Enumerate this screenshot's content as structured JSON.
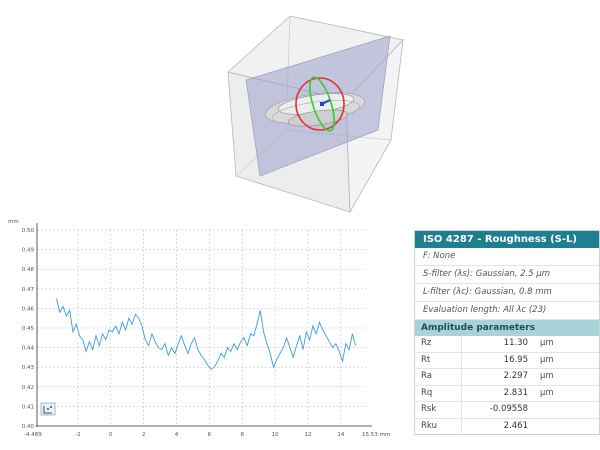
{
  "profile_chart": {
    "chart_data": {
      "type": "line",
      "y_unit": "mm",
      "x_unit": "mm",
      "x_start_label": "-4.489",
      "x_end_label": "15.53 mm",
      "x_ticks": [
        "-2",
        "0",
        "2",
        "4",
        "6",
        "8",
        "10",
        "12",
        "14"
      ],
      "y_ticks": [
        "0.40",
        "0.41",
        "0.42",
        "0.43",
        "0.44",
        "0.45",
        "0.46",
        "0.47",
        "0.48",
        "0.49",
        "0.50"
      ],
      "xlim": [
        -4.489,
        15.53
      ],
      "ylim": [
        0.4,
        0.5
      ],
      "line_color": "#3a9fd8",
      "x": [
        -3.3,
        -3.1,
        -2.9,
        -2.7,
        -2.5,
        -2.3,
        -2.1,
        -1.9,
        -1.7,
        -1.5,
        -1.3,
        -1.1,
        -0.9,
        -0.7,
        -0.5,
        -0.3,
        -0.1,
        0.1,
        0.3,
        0.5,
        0.7,
        0.9,
        1.1,
        1.3,
        1.5,
        1.7,
        1.9,
        2.1,
        2.3,
        2.5,
        2.7,
        2.9,
        3.1,
        3.3,
        3.5,
        3.7,
        3.9,
        4.1,
        4.3,
        4.5,
        4.7,
        4.9,
        5.1,
        5.3,
        5.5,
        5.7,
        5.9,
        6.1,
        6.3,
        6.5,
        6.7,
        6.9,
        7.1,
        7.3,
        7.5,
        7.7,
        7.9,
        8.1,
        8.3,
        8.5,
        8.7,
        8.9,
        9.1,
        9.3,
        9.5,
        9.7,
        9.9,
        10.1,
        10.3,
        10.5,
        10.7,
        10.9,
        11.1,
        11.3,
        11.5,
        11.7,
        11.9,
        12.1,
        12.3,
        12.5,
        12.7,
        12.9,
        13.1,
        13.3,
        13.5,
        13.7,
        13.9,
        14.1,
        14.3,
        14.5,
        14.7,
        14.9
      ],
      "y": [
        0.465,
        0.458,
        0.461,
        0.456,
        0.459,
        0.448,
        0.452,
        0.446,
        0.444,
        0.438,
        0.443,
        0.439,
        0.446,
        0.441,
        0.447,
        0.444,
        0.449,
        0.448,
        0.451,
        0.447,
        0.453,
        0.449,
        0.455,
        0.452,
        0.457,
        0.455,
        0.451,
        0.444,
        0.441,
        0.447,
        0.443,
        0.44,
        0.439,
        0.442,
        0.436,
        0.44,
        0.437,
        0.442,
        0.446,
        0.441,
        0.437,
        0.442,
        0.445,
        0.439,
        0.436,
        0.434,
        0.431,
        0.429,
        0.43,
        0.433,
        0.437,
        0.435,
        0.44,
        0.438,
        0.442,
        0.439,
        0.443,
        0.445,
        0.441,
        0.447,
        0.446,
        0.452,
        0.459,
        0.448,
        0.442,
        0.437,
        0.43,
        0.434,
        0.437,
        0.44,
        0.445,
        0.44,
        0.435,
        0.441,
        0.446,
        0.439,
        0.448,
        0.444,
        0.451,
        0.447,
        0.453,
        0.449,
        0.446,
        0.443,
        0.44,
        0.442,
        0.438,
        0.433,
        0.442,
        0.439,
        0.447,
        0.441
      ]
    }
  },
  "panel": {
    "title": "ISO 4287 - Roughness (S-L)",
    "filters": [
      "F: None",
      "S-filter (λs): Gaussian, 2.5 µm",
      "L-filter (λc): Gaussian, 0.8 mm",
      "Evaluation length: All λc (23)"
    ],
    "section": "Amplitude parameters",
    "params": [
      {
        "name": "Rz",
        "value": "11.30",
        "unit": "µm"
      },
      {
        "name": "Rt",
        "value": "16.95",
        "unit": "µm"
      },
      {
        "name": "Ra",
        "value": "2.297",
        "unit": "µm"
      },
      {
        "name": "Rq",
        "value": "2.831",
        "unit": "µm"
      },
      {
        "name": "Rsk",
        "value": "-0.09558",
        "unit": ""
      },
      {
        "name": "Rku",
        "value": "2.461",
        "unit": ""
      }
    ]
  }
}
